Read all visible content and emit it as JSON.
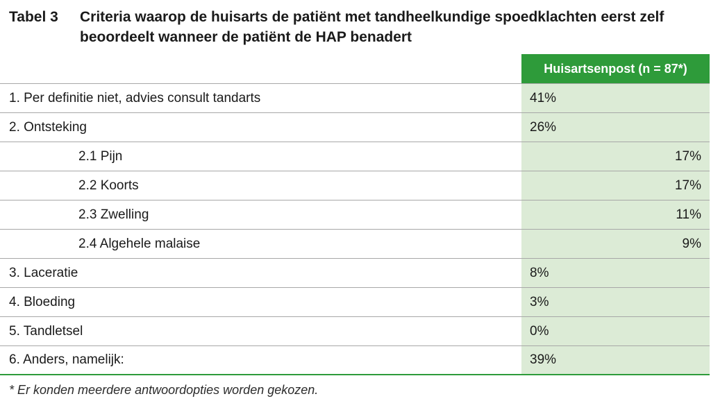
{
  "caption": {
    "label": "Tabel 3",
    "title": "Criteria waarop de huisarts de patiënt met tandheelkundige spoedklachten eerst zelf beoordeelt wanneer de patiënt de HAP benadert"
  },
  "table": {
    "column_header": "Huisartsenpost (n = 87*)",
    "rows": [
      {
        "label": "1. Per definitie niet, advies consult tandarts",
        "value": "41%"
      },
      {
        "label": "2. Ontsteking",
        "value": "26%"
      },
      {
        "label": "2.1 Pijn",
        "value": "17%"
      },
      {
        "label": "2.2 Koorts",
        "value": "17%"
      },
      {
        "label": "2.3 Zwelling",
        "value": "11%"
      },
      {
        "label": "2.4 Algehele malaise",
        "value": "9%"
      },
      {
        "label": "3. Laceratie",
        "value": "8%"
      },
      {
        "label": "4. Bloeding",
        "value": "3%"
      },
      {
        "label": "5. Tandletsel",
        "value": "0%"
      },
      {
        "label": "6. Anders, namelijk:",
        "value": "39%"
      }
    ]
  },
  "footnote": "* Er konden meerdere antwoordopties worden gekozen.",
  "colors": {
    "header_green": "#2e9b3a",
    "value_column_bg": "#dcebd6",
    "rule_gray": "#a7a7a7"
  }
}
